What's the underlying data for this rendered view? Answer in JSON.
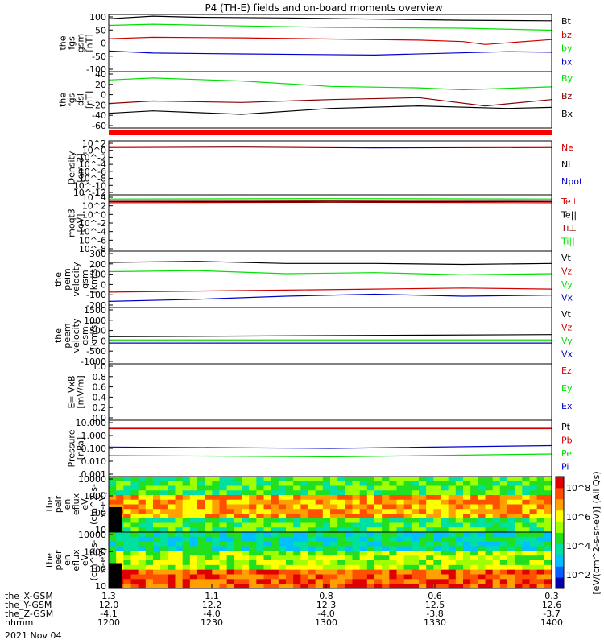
{
  "title": "P4 (TH-E) fields and on-board moments overview",
  "date": "2021 Nov 04",
  "colors": {
    "black": "#000000",
    "red": "#d00000",
    "green": "#00e000",
    "blue": "#0000cc",
    "darkred": "#8b0000",
    "orange": "#ff6a00"
  },
  "chart_data": {
    "type": "line",
    "x_axis": {
      "hhmm": [
        "1200",
        "1230",
        "1300",
        "1330",
        "1400"
      ],
      "rows": [
        {
          "label": "the_X-GSM",
          "values": [
            "1.3",
            "1.1",
            "0.8",
            "0.6",
            "0.3"
          ]
        },
        {
          "label": "the_Y-GSM",
          "values": [
            "12.0",
            "12.2",
            "12.3",
            "12.5",
            "12.6"
          ]
        },
        {
          "label": "the_Z-GSM",
          "values": [
            "-4.1",
            "-4.0",
            "-4.0",
            "-3.8",
            "-3.7"
          ]
        },
        {
          "label": "hhmm",
          "values": [
            "1200",
            "1230",
            "1300",
            "1330",
            "1400"
          ]
        }
      ]
    },
    "panels": [
      {
        "id": "fgs_gsm",
        "ylabel": [
          "the",
          "fgs",
          "gsm",
          "[nT]"
        ],
        "ticks": [
          "100",
          "50",
          "0",
          "-50",
          "-100"
        ],
        "ylim": [
          -100,
          100
        ],
        "series": [
          {
            "name": "Bt",
            "color": "#000000",
            "x": [
              0,
              10,
              20,
              40,
              60,
              80,
              100
            ],
            "y": [
              85,
              94,
              90,
              88,
              84,
              80,
              78
            ]
          },
          {
            "name": "bz",
            "color": "#d00000",
            "x": [
              0,
              10,
              30,
              50,
              70,
              80,
              85,
              100
            ],
            "y": [
              15,
              20,
              18,
              14,
              10,
              5,
              -5,
              12
            ]
          },
          {
            "name": "by",
            "color": "#00e000",
            "x": [
              0,
              10,
              30,
              50,
              80,
              100
            ],
            "y": [
              62,
              66,
              60,
              55,
              52,
              45
            ]
          },
          {
            "name": "bx",
            "color": "#0000cc",
            "x": [
              0,
              10,
              30,
              60,
              90,
              100
            ],
            "y": [
              -28,
              -35,
              -38,
              -42,
              -30,
              -32
            ]
          }
        ]
      },
      {
        "id": "fgs_dsl",
        "ylabel": [
          "the",
          "fgs",
          "dsl",
          "[nT]"
        ],
        "ticks": [
          "40",
          "20",
          "0",
          "-20",
          "-40",
          "-60"
        ],
        "ylim": [
          -70,
          45
        ],
        "series": [
          {
            "name": "By",
            "color": "#00e000",
            "x": [
              0,
              10,
              30,
              50,
              70,
              80,
              100
            ],
            "y": [
              28,
              32,
              26,
              15,
              12,
              8,
              14
            ]
          },
          {
            "name": "Bz",
            "color": "#8b0000",
            "x": [
              0,
              10,
              30,
              50,
              70,
              85,
              100
            ],
            "y": [
              -20,
              -15,
              -18,
              -12,
              -8,
              -25,
              -12
            ]
          },
          {
            "name": "Bx",
            "color": "#000000",
            "x": [
              0,
              10,
              30,
              50,
              70,
              90,
              100
            ],
            "y": [
              -40,
              -35,
              -42,
              -30,
              -25,
              -30,
              -28
            ]
          }
        ]
      },
      {
        "id": "density",
        "ylabel": [
          "Density",
          "[cm-3]"
        ],
        "ticks": [
          "10^2",
          "10^0",
          "10^-2",
          "10^-4",
          "10^-6",
          "10^-8",
          "10^-10",
          "10^-12"
        ],
        "ylim": [
          -12,
          2
        ],
        "log": true,
        "series": [
          {
            "name": "Ne",
            "color": "#d00000",
            "x": [
              0,
              30,
              60,
              100
            ],
            "y": [
              0.5,
              0.6,
              0.4,
              0.5
            ]
          },
          {
            "name": "Ni",
            "color": "#000000",
            "x": [
              0,
              30,
              60,
              100
            ],
            "y": [
              0.4,
              0.5,
              0.3,
              0.4
            ]
          },
          {
            "name": "Npot",
            "color": "#0000cc",
            "x": [
              0,
              30,
              60,
              100
            ],
            "y": [
              0.3,
              0.4,
              0.2,
              0.3
            ]
          }
        ]
      },
      {
        "id": "temp",
        "ylabel": [
          "moqt3",
          "[eV]"
        ],
        "ticks": [
          "10^4",
          "10^2",
          "10^0",
          "10^-2",
          "10^-4",
          "10^-6",
          "10^-8"
        ],
        "ylim": [
          -9,
          4.5
        ],
        "log": true,
        "series": [
          {
            "name": "Te⊥",
            "color": "#d00000",
            "x": [
              0,
              50,
              100
            ],
            "y": [
              2.6,
              2.7,
              2.6
            ]
          },
          {
            "name": "Te||",
            "color": "#000000",
            "x": [
              0,
              50,
              100
            ],
            "y": [
              2.9,
              2.8,
              2.9
            ]
          },
          {
            "name": "Ti⊥",
            "color": "#8b0000",
            "x": [
              0,
              50,
              100
            ],
            "y": [
              3.2,
              3.1,
              3.2
            ]
          },
          {
            "name": "Ti||",
            "color": "#00e000",
            "x": [
              0,
              50,
              100
            ],
            "y": [
              3.5,
              3.6,
              3.5
            ]
          }
        ]
      },
      {
        "id": "peim",
        "ylabel": [
          "the",
          "peim",
          "velocity",
          "gsm",
          "[km/s]"
        ],
        "ticks": [
          "300",
          "200",
          "100",
          "0",
          "-100",
          "-200"
        ],
        "ylim": [
          -230,
          320
        ],
        "series": [
          {
            "name": "Vt",
            "color": "#000000",
            "x": [
              0,
              20,
              40,
              60,
              80,
              100
            ],
            "y": [
              210,
              220,
              200,
              200,
              190,
              200
            ]
          },
          {
            "name": "Vz",
            "color": "#d00000",
            "x": [
              0,
              20,
              40,
              60,
              80,
              100
            ],
            "y": [
              -80,
              -70,
              -60,
              -50,
              -40,
              -50
            ]
          },
          {
            "name": "Vy",
            "color": "#00e000",
            "x": [
              0,
              20,
              40,
              60,
              80,
              100
            ],
            "y": [
              120,
              130,
              100,
              110,
              90,
              100
            ]
          },
          {
            "name": "Vx",
            "color": "#0000cc",
            "x": [
              0,
              20,
              40,
              60,
              80,
              100
            ],
            "y": [
              -170,
              -150,
              -120,
              -100,
              -120,
              -110
            ]
          }
        ]
      },
      {
        "id": "peem",
        "ylabel": [
          "the",
          "peem",
          "velocity",
          "gsm",
          "[km/s]"
        ],
        "ticks": [
          "1500",
          "1000",
          "500",
          "0",
          "-500",
          "-1000"
        ],
        "ylim": [
          -1100,
          1600
        ],
        "series": [
          {
            "name": "Vt",
            "color": "#000000",
            "x": [
              0,
              50,
              100
            ],
            "y": [
              200,
              250,
              300
            ]
          },
          {
            "name": "Vz",
            "color": "#d00000",
            "x": [
              0,
              50,
              100
            ],
            "y": [
              0,
              0,
              0
            ]
          },
          {
            "name": "Vy",
            "color": "#00e000",
            "x": [
              0,
              50,
              100
            ],
            "y": [
              50,
              50,
              50
            ]
          },
          {
            "name": "Vx",
            "color": "#0000cc",
            "x": [
              0,
              50,
              100
            ],
            "y": [
              -100,
              -100,
              -100
            ]
          }
        ]
      },
      {
        "id": "efield",
        "ylabel": [
          "E=-VxB",
          "[mV/m]"
        ],
        "ticks": [
          "1.0",
          "0.8",
          "0.6",
          "0.4",
          "0.2",
          "0.0"
        ],
        "ylim": [
          0,
          1
        ],
        "series": [
          {
            "name": "Ez",
            "color": "#d00000",
            "x": [],
            "y": []
          },
          {
            "name": "Ey",
            "color": "#00e000",
            "x": [],
            "y": []
          },
          {
            "name": "Ex",
            "color": "#0000cc",
            "x": [],
            "y": []
          }
        ]
      },
      {
        "id": "pressure",
        "ylabel": [
          "Pressure",
          "[nPa]"
        ],
        "ticks": [
          "10.000",
          "1.000",
          "0.100",
          "0.010",
          "0.001"
        ],
        "ylim": [
          -3,
          1
        ],
        "log": true,
        "series": [
          {
            "name": "Pt",
            "color": "#000000",
            "x": [
              0,
              50,
              100
            ],
            "y": [
              0.5,
              0.5,
              0.5
            ]
          },
          {
            "name": "Pb",
            "color": "#d00000",
            "x": [
              0,
              50,
              100
            ],
            "y": [
              0.4,
              0.4,
              0.4
            ]
          },
          {
            "name": "Pe",
            "color": "#00e000",
            "x": [
              0,
              50,
              100
            ],
            "y": [
              -1.5,
              -1.6,
              -1.4
            ]
          },
          {
            "name": "Pi",
            "color": "#0000cc",
            "x": [
              0,
              50,
              100
            ],
            "y": [
              -0.9,
              -1.0,
              -0.8
            ]
          }
        ]
      },
      {
        "id": "peir",
        "ylabel": [
          "the",
          "peir",
          "en",
          "eflux",
          "eV",
          "(cm^2-s-",
          "sr-eV)"
        ],
        "ticks": [
          "10000",
          "1000",
          "100",
          "10"
        ],
        "type": "heatmap"
      },
      {
        "id": "peer",
        "ylabel": [
          "the",
          "peer",
          "en",
          "eflux",
          "eV",
          "(cm^2-s-",
          "sr-eV)"
        ],
        "ticks": [
          "10000",
          "1000",
          "100",
          "10"
        ],
        "type": "heatmap"
      }
    ],
    "colorbar": {
      "label": "[eV/(cm^2-s-sr-eV)] (All Qs)",
      "ticks": [
        "10^8",
        "10^6",
        "10^4",
        "10^2"
      ]
    }
  }
}
